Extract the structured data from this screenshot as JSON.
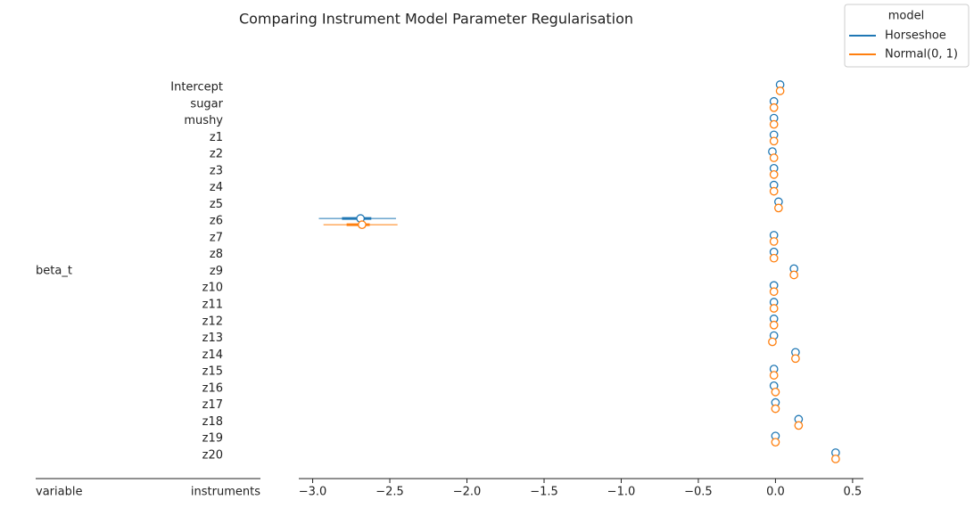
{
  "chart_data": {
    "type": "forest",
    "title": "Comparing Instrument Model Parameter Regularisation",
    "group_label": "beta_t",
    "column_labels": [
      "variable",
      "instruments"
    ],
    "legend_title": "model",
    "legend": "upper right",
    "categories": [
      "Intercept",
      "sugar",
      "mushy",
      "z1",
      "z2",
      "z3",
      "z4",
      "z5",
      "z6",
      "z7",
      "z8",
      "z9",
      "z10",
      "z11",
      "z12",
      "z13",
      "z14",
      "z15",
      "z16",
      "z17",
      "z18",
      "z19",
      "z20"
    ],
    "series": [
      {
        "name": "Horseshoe",
        "color": "#1f77b4",
        "values": [
          0.03,
          -0.01,
          -0.01,
          -0.01,
          -0.02,
          -0.01,
          -0.01,
          0.02,
          -2.69,
          -0.01,
          -0.01,
          0.12,
          -0.01,
          -0.01,
          -0.01,
          -0.01,
          0.13,
          -0.01,
          -0.01,
          0.0,
          0.15,
          0.0,
          0.39
        ],
        "hdi_94": [
          null,
          null,
          null,
          null,
          null,
          null,
          null,
          null,
          [
            -2.96,
            -2.46
          ],
          null,
          null,
          null,
          null,
          null,
          null,
          null,
          null,
          null,
          null,
          null,
          null,
          null,
          null
        ],
        "hdi_50": [
          null,
          null,
          null,
          null,
          null,
          null,
          null,
          null,
          [
            -2.81,
            -2.62
          ],
          null,
          null,
          null,
          null,
          null,
          null,
          null,
          null,
          null,
          null,
          null,
          null,
          null,
          null
        ]
      },
      {
        "name": "Normal(0, 1)",
        "color": "#ff7f0e",
        "values": [
          0.03,
          -0.01,
          -0.01,
          -0.01,
          -0.01,
          -0.01,
          -0.01,
          0.02,
          -2.68,
          -0.01,
          -0.01,
          0.12,
          -0.01,
          -0.01,
          -0.01,
          -0.02,
          0.13,
          -0.01,
          0.0,
          0.0,
          0.15,
          0.0,
          0.39
        ],
        "hdi_94": [
          null,
          null,
          null,
          null,
          null,
          null,
          null,
          null,
          [
            -2.93,
            -2.45
          ],
          null,
          null,
          null,
          null,
          null,
          null,
          null,
          null,
          null,
          null,
          null,
          null,
          null,
          null
        ],
        "hdi_50": [
          null,
          null,
          null,
          null,
          null,
          null,
          null,
          null,
          [
            -2.78,
            -2.63
          ],
          null,
          null,
          null,
          null,
          null,
          null,
          null,
          null,
          null,
          null,
          null,
          null,
          null,
          null
        ]
      }
    ],
    "xlim": [
      -3.09,
      0.57
    ],
    "xticks": [
      {
        "value": -3.0,
        "label": "−3.0"
      },
      {
        "value": -2.5,
        "label": "−2.5"
      },
      {
        "value": -2.0,
        "label": "−2.0"
      },
      {
        "value": -1.5,
        "label": "−1.5"
      },
      {
        "value": -1.0,
        "label": "−1.0"
      },
      {
        "value": -0.5,
        "label": "−0.5"
      },
      {
        "value": 0.0,
        "label": "0.0"
      },
      0.5
    ]
  }
}
